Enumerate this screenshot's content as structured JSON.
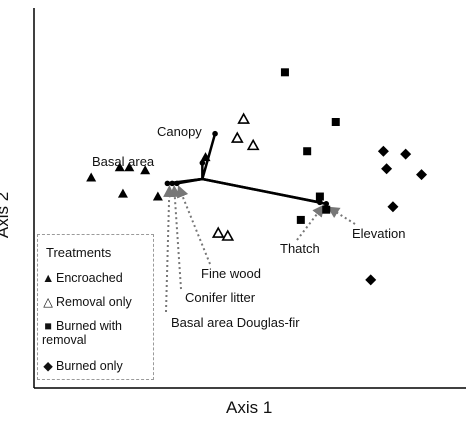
{
  "chart_data": {
    "type": "scatter",
    "title": "",
    "xlabel": "Axis 1",
    "ylabel": "Axis 2",
    "grid": false,
    "legend": {
      "placement": "bottom-left",
      "title": "Treatments",
      "entries": [
        "Encroached",
        "Removal only",
        "Burned with removal",
        "Burned only"
      ]
    },
    "series": [
      {
        "name": "Encroached",
        "marker": "triangle-filled",
        "x": [
          -4.0,
          -3.1,
          -2.8,
          -2.3,
          -3.0,
          -1.9,
          -0.4
        ],
        "y": [
          0.2,
          0.55,
          0.55,
          0.45,
          -0.35,
          -0.45,
          0.9
        ]
      },
      {
        "name": "Removal only",
        "marker": "triangle-open",
        "x": [
          0.6,
          0.8,
          1.1,
          0.0,
          0.3
        ],
        "y": [
          1.55,
          2.2,
          1.3,
          -1.7,
          -1.8
        ]
      },
      {
        "name": "Burned with removal",
        "marker": "square",
        "x": [
          2.1,
          3.7,
          2.8,
          3.2,
          2.6,
          3.4
        ],
        "y": [
          3.8,
          2.1,
          1.1,
          -0.45,
          -1.25,
          -0.9
        ]
      },
      {
        "name": "Burned only",
        "marker": "diamond",
        "x": [
          5.2,
          5.9,
          5.3,
          6.4,
          5.5,
          4.8
        ],
        "y": [
          1.1,
          1.0,
          0.5,
          0.3,
          -0.8,
          -3.3
        ]
      }
    ],
    "vectors": [
      {
        "label": "Canopy",
        "from": [
          -0.5,
          0.15
        ],
        "to": [
          -0.1,
          1.7
        ]
      },
      {
        "label": "Basal area",
        "from": [
          -0.5,
          0.15
        ],
        "to": [
          -0.5,
          0.7
        ]
      },
      {
        "label": "Fine wood",
        "from": [
          -0.5,
          0.15
        ],
        "to": [
          -1.3,
          0.0
        ]
      },
      {
        "label": "Conifer litter",
        "from": [
          -0.5,
          0.15
        ],
        "to": [
          -1.45,
          0.0
        ]
      },
      {
        "label": "Basal area Douglas-fir",
        "from": [
          -0.5,
          0.15
        ],
        "to": [
          -1.6,
          0.0
        ]
      },
      {
        "label": "Thatch",
        "from": [
          -0.5,
          0.15
        ],
        "to": [
          3.2,
          -0.65
        ]
      },
      {
        "label": "Elevation",
        "from": [
          -0.5,
          0.15
        ],
        "to": [
          3.4,
          -0.7
        ]
      }
    ]
  }
}
